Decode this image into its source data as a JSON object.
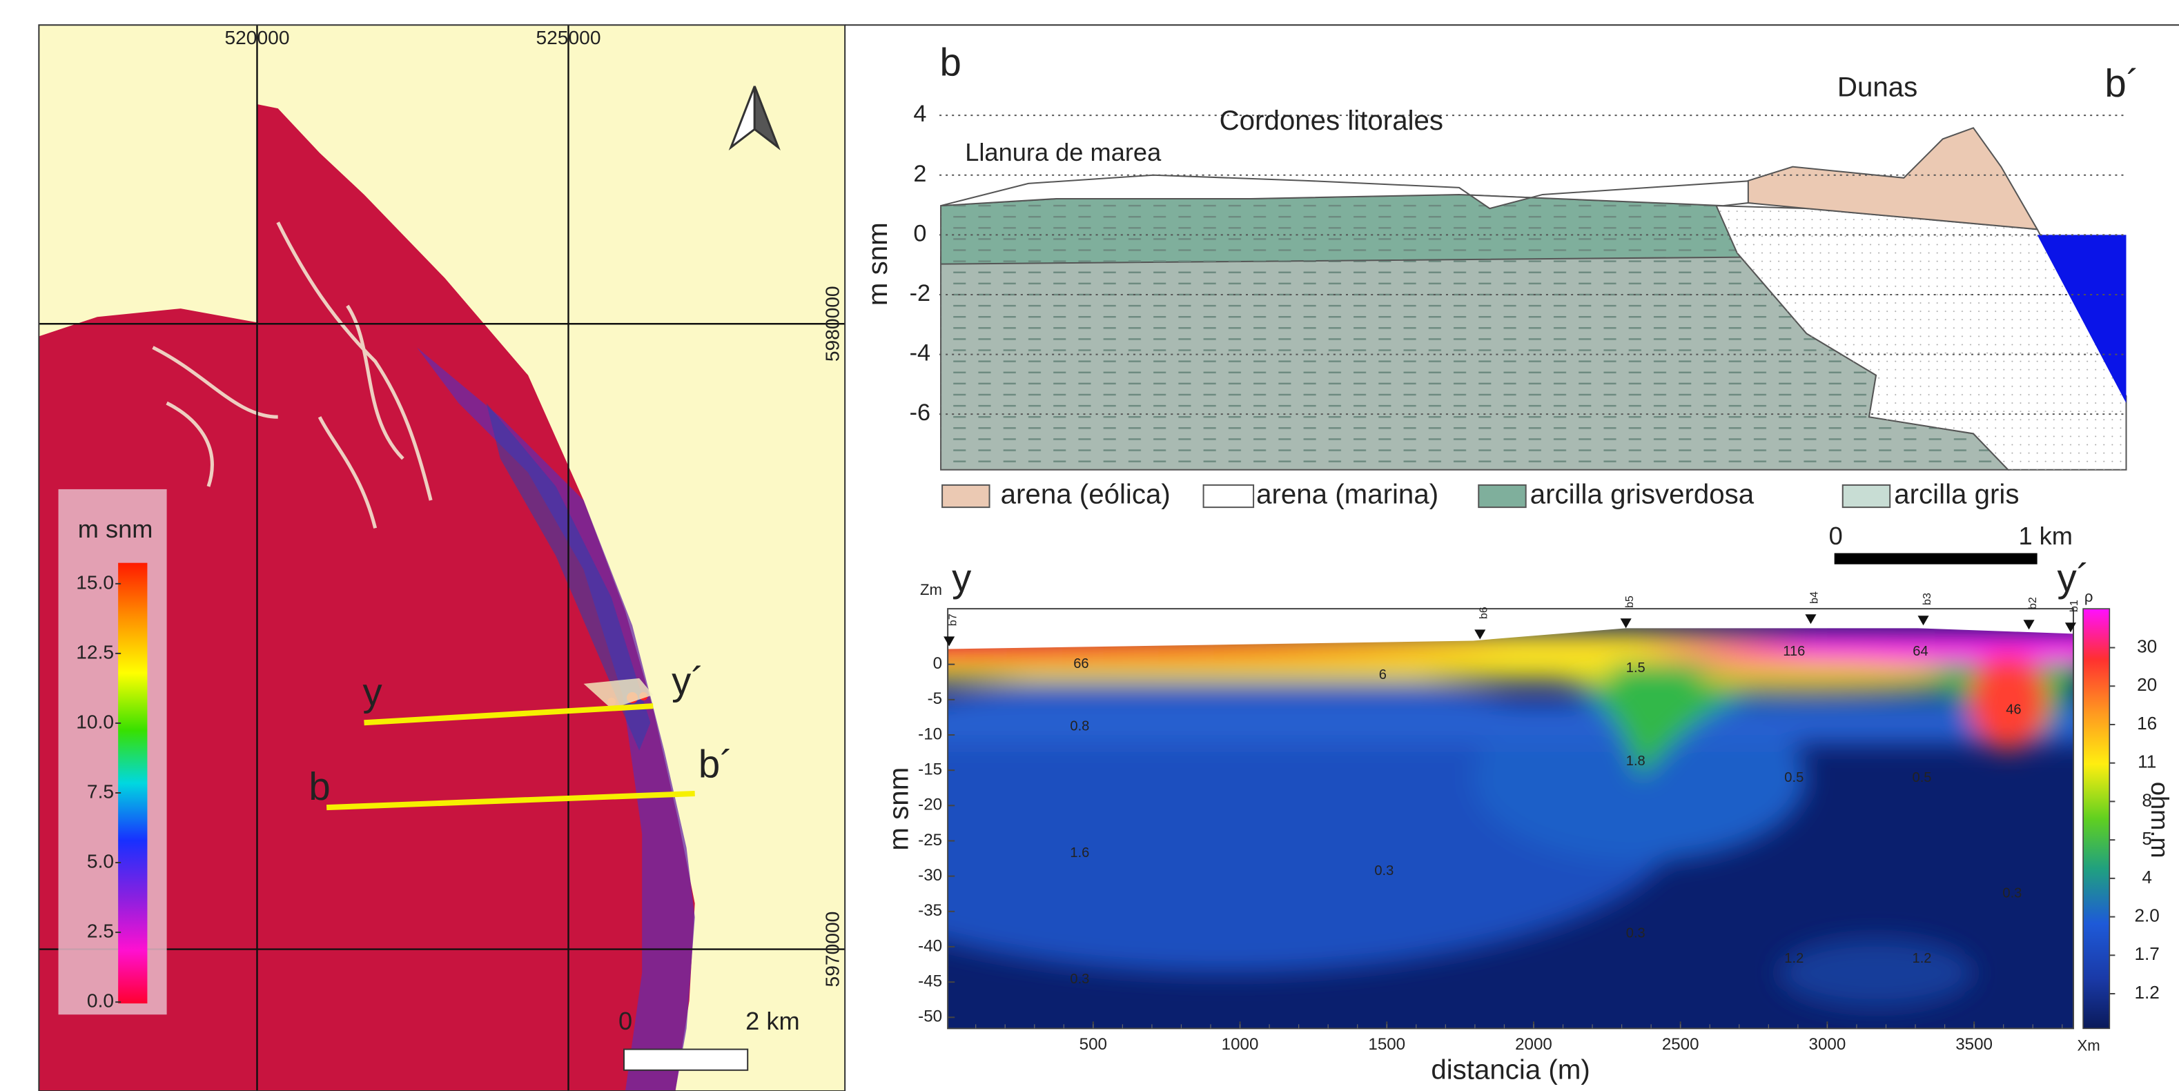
{
  "map": {
    "x_labels": [
      "520000",
      "525000"
    ],
    "y_labels": [
      "5980000",
      "5970000"
    ],
    "colorbar": {
      "title": "m snm",
      "labels": [
        "15.0",
        "12.5",
        "10.0",
        "7.5",
        "5.0",
        "2.5",
        "0.0"
      ]
    },
    "profiles": [
      {
        "start": "y",
        "end": "y´"
      },
      {
        "start": "b",
        "end": "b´"
      }
    ],
    "scale": {
      "start": "0",
      "end": "2 km"
    }
  },
  "section": {
    "start": "b",
    "end": "b´",
    "y_label": "m snm",
    "yticks": [
      4,
      2,
      0,
      -2,
      -4,
      -6
    ],
    "annotations": [
      "Cordones litorales",
      "Dunas",
      "Llanura de marea"
    ],
    "legend": [
      "arena (eólica)",
      "arena (marina)",
      "arcilla grisverdosa",
      "arcilla gris"
    ],
    "scale": {
      "start": "0",
      "end": "1 km"
    }
  },
  "tomography": {
    "start": "y",
    "end": "y´",
    "z_label": "Zm",
    "x_corner": "Xm",
    "rho": "ρ",
    "x_label": "distancia (m)",
    "y_label": "m snm",
    "xticks": [
      500,
      1000,
      1500,
      2000,
      2500,
      3000,
      3500
    ],
    "yticks": [
      0,
      -5,
      -10,
      -15,
      -20,
      -25,
      -30,
      -35,
      -40,
      -45,
      -50
    ],
    "colorbar": {
      "title": "ohm.m",
      "labels": [
        "30",
        "20",
        "16",
        "11",
        "8",
        "5",
        "4",
        "2.0",
        "1.7",
        "1.2"
      ]
    },
    "electrodes": [
      "b7",
      "b6",
      "b5",
      "b4",
      "b3",
      "b2",
      "b1"
    ],
    "value_labels": [
      "66",
      "6",
      "1.5",
      "116",
      "64",
      "46",
      "0.8",
      "1.8",
      "0.5",
      "0.5",
      "1.6",
      "0.3",
      "0.3",
      "0.3",
      "1.2",
      "1.2",
      "0.3"
    ]
  }
}
